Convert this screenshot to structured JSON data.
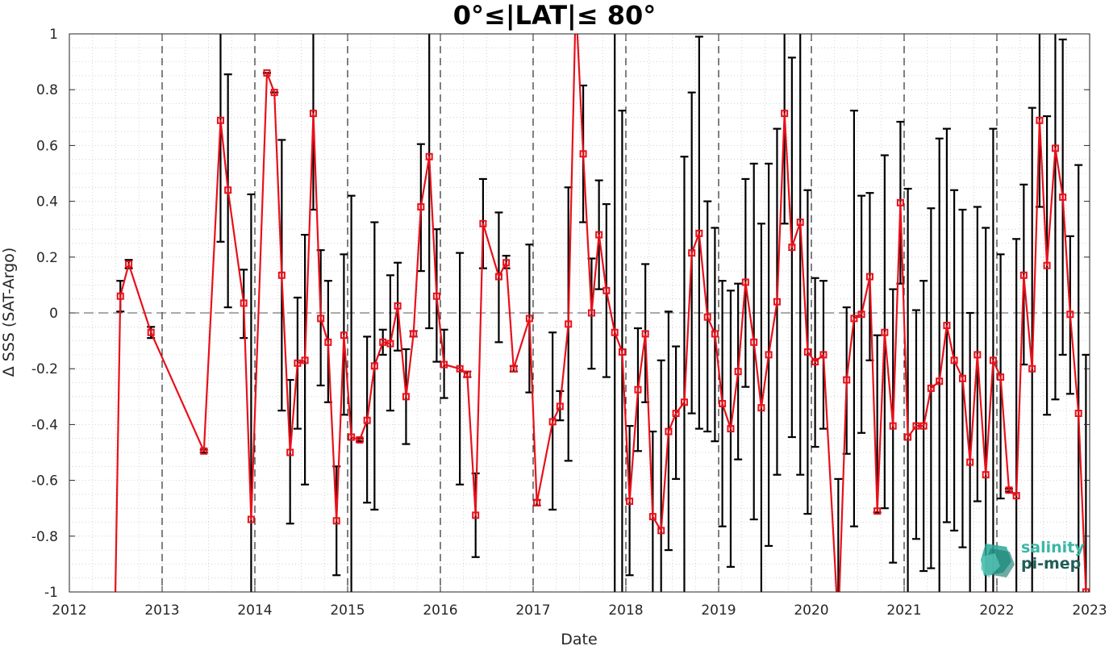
{
  "title": "0°≤|LAT|≤ 80°",
  "logo": {
    "line1": "salinity",
    "line2": "pi-mep",
    "icon": "salinity-pimep-logo-icon"
  },
  "colors": {
    "series": "#e8101a",
    "errorbar": "#000000",
    "grid": "#c8c8c8",
    "year_line": "#000000",
    "zero_line": "#555555"
  },
  "chart_data": {
    "type": "line",
    "title": "0°≤|LAT|≤ 80°",
    "xlabel": "Date",
    "ylabel": "Δ SSS (SAT-Argo)",
    "xlim": [
      2012,
      2023
    ],
    "ylim": [
      -1,
      1
    ],
    "xticks": [
      "2012",
      "2013",
      "2014",
      "2015",
      "2016",
      "2017",
      "2018",
      "2019",
      "2020",
      "2021",
      "2022",
      "2023"
    ],
    "yticks": [
      "1",
      "0.8",
      "0.6",
      "0.4",
      "0.2",
      "0",
      "-0.2",
      "-0.4",
      "-0.6",
      "-0.8",
      "-1"
    ],
    "grid": "on (dotted minor)",
    "reference_lines": {
      "zero_line": 0,
      "year_boundaries": true
    },
    "series": [
      {
        "points": [
          {
            "x": 2012.49,
            "y": -1.15
          },
          {
            "x": 2012.55,
            "y": 0.06,
            "lo": 0.005,
            "hi": 0.115
          },
          {
            "x": 2012.64,
            "y": 0.175,
            "lo": 0.16,
            "hi": 0.19
          },
          {
            "x": 2012.88,
            "y": -0.07,
            "lo": -0.09,
            "hi": -0.05
          },
          {
            "x": 2013.45,
            "y": -0.495,
            "lo": -0.5,
            "hi": -0.49
          },
          {
            "x": 2013.63,
            "y": 0.69,
            "lo": 0.255,
            "hi": 1.0
          },
          {
            "x": 2013.71,
            "y": 0.44,
            "lo": 0.02,
            "hi": 0.855
          },
          {
            "x": 2013.88,
            "y": 0.035,
            "lo": -0.09,
            "hi": 0.155
          },
          {
            "x": 2013.96,
            "y": -0.74,
            "lo": -1.0,
            "hi": 0.425
          },
          {
            "x": 2014.13,
            "y": 0.86,
            "lo": 0.86,
            "hi": 0.86
          },
          {
            "x": 2014.21,
            "y": 0.79,
            "lo": 0.79,
            "hi": 0.79
          },
          {
            "x": 2014.29,
            "y": 0.135,
            "lo": -0.35,
            "hi": 0.62
          },
          {
            "x": 2014.38,
            "y": -0.5,
            "lo": -0.755,
            "hi": -0.24
          },
          {
            "x": 2014.46,
            "y": -0.18,
            "lo": -0.415,
            "hi": 0.055
          },
          {
            "x": 2014.54,
            "y": -0.17,
            "lo": -0.615,
            "hi": 0.28
          },
          {
            "x": 2014.63,
            "y": 0.715,
            "lo": 0.37,
            "hi": 1.0
          },
          {
            "x": 2014.71,
            "y": -0.02,
            "lo": -0.26,
            "hi": 0.225
          },
          {
            "x": 2014.79,
            "y": -0.105,
            "lo": -0.32,
            "hi": 0.115
          },
          {
            "x": 2014.88,
            "y": -0.745,
            "lo": -0.94,
            "hi": -0.55
          },
          {
            "x": 2014.96,
            "y": -0.08,
            "lo": -0.365,
            "hi": 0.21
          },
          {
            "x": 2015.04,
            "y": -0.445,
            "lo": -1.0,
            "hi": 0.42
          },
          {
            "x": 2015.13,
            "y": -0.455,
            "lo": -0.46,
            "hi": -0.45
          },
          {
            "x": 2015.21,
            "y": -0.385,
            "lo": -0.68,
            "hi": -0.085
          },
          {
            "x": 2015.29,
            "y": -0.19,
            "lo": -0.705,
            "hi": 0.325
          },
          {
            "x": 2015.38,
            "y": -0.105,
            "lo": -0.15,
            "hi": -0.06
          },
          {
            "x": 2015.46,
            "y": -0.11,
            "lo": -0.35,
            "hi": 0.135
          },
          {
            "x": 2015.54,
            "y": 0.025,
            "lo": -0.135,
            "hi": 0.18
          },
          {
            "x": 2015.63,
            "y": -0.3,
            "lo": -0.47,
            "hi": -0.13
          },
          {
            "x": 2015.71,
            "y": -0.075,
            "lo": -0.085,
            "hi": -0.065
          },
          {
            "x": 2015.79,
            "y": 0.38,
            "lo": 0.15,
            "hi": 0.605
          },
          {
            "x": 2015.88,
            "y": 0.56,
            "lo": -0.055,
            "hi": 1.0
          },
          {
            "x": 2015.96,
            "y": 0.06,
            "lo": -0.175,
            "hi": 0.3
          },
          {
            "x": 2016.04,
            "y": -0.185,
            "lo": -0.305,
            "hi": -0.06
          },
          {
            "x": 2016.21,
            "y": -0.2,
            "lo": -0.615,
            "hi": 0.215
          },
          {
            "x": 2016.29,
            "y": -0.22,
            "lo": -0.23,
            "hi": -0.21
          },
          {
            "x": 2016.38,
            "y": -0.725,
            "lo": -0.875,
            "hi": -0.575
          },
          {
            "x": 2016.46,
            "y": 0.32,
            "lo": 0.16,
            "hi": 0.48
          },
          {
            "x": 2016.63,
            "y": 0.13,
            "lo": -0.105,
            "hi": 0.36
          },
          {
            "x": 2016.71,
            "y": 0.18,
            "lo": 0.16,
            "hi": 0.205
          },
          {
            "x": 2016.79,
            "y": -0.2,
            "lo": -0.21,
            "hi": -0.19
          },
          {
            "x": 2016.96,
            "y": -0.02,
            "lo": -0.285,
            "hi": 0.245
          },
          {
            "x": 2017.04,
            "y": -0.68,
            "lo": -0.69,
            "hi": -0.67
          },
          {
            "x": 2017.21,
            "y": -0.39,
            "lo": -0.705,
            "hi": -0.07
          },
          {
            "x": 2017.29,
            "y": -0.335,
            "lo": -0.385,
            "hi": -0.28
          },
          {
            "x": 2017.38,
            "y": -0.04,
            "lo": -0.53,
            "hi": 0.45
          },
          {
            "x": 2017.46,
            "y": 1.15
          },
          {
            "x": 2017.54,
            "y": 0.57,
            "lo": 0.325,
            "hi": 0.815
          },
          {
            "x": 2017.63,
            "y": 0.0,
            "lo": -0.2,
            "hi": 0.195
          },
          {
            "x": 2017.71,
            "y": 0.28,
            "lo": 0.085,
            "hi": 0.475
          },
          {
            "x": 2017.79,
            "y": 0.08,
            "lo": -0.23,
            "hi": 0.39
          },
          {
            "x": 2017.88,
            "y": -0.07,
            "lo": -1.0,
            "hi": 1.0
          },
          {
            "x": 2017.96,
            "y": -0.14,
            "lo": -1.0,
            "hi": 0.725
          },
          {
            "x": 2018.04,
            "y": -0.675,
            "lo": -0.94,
            "hi": -0.405
          },
          {
            "x": 2018.13,
            "y": -0.275,
            "lo": -0.495,
            "hi": -0.055
          },
          {
            "x": 2018.21,
            "y": -0.075,
            "lo": -0.32,
            "hi": 0.175
          },
          {
            "x": 2018.29,
            "y": -0.73,
            "lo": -1.0,
            "hi": -0.425
          },
          {
            "x": 2018.38,
            "y": -0.78,
            "lo": -1.0,
            "hi": -0.17
          },
          {
            "x": 2018.46,
            "y": -0.425,
            "lo": -0.85,
            "hi": 0.005
          },
          {
            "x": 2018.54,
            "y": -0.36,
            "lo": -0.595,
            "hi": -0.12
          },
          {
            "x": 2018.63,
            "y": -0.32,
            "lo": -1.0,
            "hi": 0.56
          },
          {
            "x": 2018.71,
            "y": 0.215,
            "lo": -0.36,
            "hi": 0.79
          },
          {
            "x": 2018.79,
            "y": 0.285,
            "lo": -0.415,
            "hi": 0.99
          },
          {
            "x": 2018.88,
            "y": -0.015,
            "lo": -0.425,
            "hi": 0.4
          },
          {
            "x": 2018.96,
            "y": -0.075,
            "lo": -0.46,
            "hi": 0.305
          },
          {
            "x": 2019.04,
            "y": -0.325,
            "lo": -0.765,
            "hi": 0.115
          },
          {
            "x": 2019.13,
            "y": -0.415,
            "lo": -0.91,
            "hi": 0.08
          },
          {
            "x": 2019.21,
            "y": -0.21,
            "lo": -0.525,
            "hi": 0.105
          },
          {
            "x": 2019.29,
            "y": 0.11,
            "lo": -0.265,
            "hi": 0.48
          },
          {
            "x": 2019.38,
            "y": -0.105,
            "lo": -0.74,
            "hi": 0.535
          },
          {
            "x": 2019.46,
            "y": -0.34,
            "lo": -1.0,
            "hi": 0.32
          },
          {
            "x": 2019.54,
            "y": -0.15,
            "lo": -0.835,
            "hi": 0.535
          },
          {
            "x": 2019.63,
            "y": 0.04,
            "lo": -0.58,
            "hi": 0.66
          },
          {
            "x": 2019.71,
            "y": 0.715,
            "lo": 0.32,
            "hi": 1.0
          },
          {
            "x": 2019.79,
            "y": 0.235,
            "lo": -0.445,
            "hi": 0.915
          },
          {
            "x": 2019.88,
            "y": 0.325,
            "lo": -0.58,
            "hi": 1.0
          },
          {
            "x": 2019.96,
            "y": -0.14,
            "lo": -0.72,
            "hi": 0.44
          },
          {
            "x": 2020.04,
            "y": -0.175,
            "lo": -0.48,
            "hi": 0.125
          },
          {
            "x": 2020.13,
            "y": -0.15,
            "lo": -0.415,
            "hi": 0.115
          },
          {
            "x": 2020.29,
            "y": -1.15,
            "lo": -1.0,
            "hi": -0.595
          },
          {
            "x": 2020.38,
            "y": -0.24,
            "lo": -0.505,
            "hi": 0.02
          },
          {
            "x": 2020.46,
            "y": -0.02,
            "lo": -0.765,
            "hi": 0.725
          },
          {
            "x": 2020.54,
            "y": -0.005,
            "lo": -0.43,
            "hi": 0.42
          },
          {
            "x": 2020.63,
            "y": 0.13,
            "lo": -0.17,
            "hi": 0.43
          },
          {
            "x": 2020.71,
            "y": -0.71,
            "lo": -0.715,
            "hi": -0.08
          },
          {
            "x": 2020.79,
            "y": -0.07,
            "lo": -0.7,
            "hi": 0.565
          },
          {
            "x": 2020.88,
            "y": -0.405,
            "lo": -0.895,
            "hi": 0.085
          },
          {
            "x": 2020.96,
            "y": 0.395,
            "lo": 0.105,
            "hi": 0.685
          },
          {
            "x": 2021.04,
            "y": -0.445,
            "lo": -1.0,
            "hi": 0.445
          },
          {
            "x": 2021.13,
            "y": -0.405,
            "lo": -0.81,
            "hi": 0.01
          },
          {
            "x": 2021.21,
            "y": -0.405,
            "lo": -0.925,
            "hi": 0.115
          },
          {
            "x": 2021.29,
            "y": -0.27,
            "lo": -0.915,
            "hi": 0.375
          },
          {
            "x": 2021.38,
            "y": -0.245,
            "lo": -1.0,
            "hi": 0.625
          },
          {
            "x": 2021.46,
            "y": -0.045,
            "lo": -0.75,
            "hi": 0.66
          },
          {
            "x": 2021.54,
            "y": -0.17,
            "lo": -0.78,
            "hi": 0.44
          },
          {
            "x": 2021.63,
            "y": -0.235,
            "lo": -0.84,
            "hi": 0.37
          },
          {
            "x": 2021.71,
            "y": -0.535,
            "lo": -1.0,
            "hi": 0.0
          },
          {
            "x": 2021.79,
            "y": -0.15,
            "lo": -0.675,
            "hi": 0.38
          },
          {
            "x": 2021.88,
            "y": -0.58,
            "lo": -1.0,
            "hi": 0.305
          },
          {
            "x": 2021.96,
            "y": -0.17,
            "lo": -1.0,
            "hi": 0.66
          },
          {
            "x": 2022.04,
            "y": -0.23,
            "lo": -0.665,
            "hi": 0.21
          },
          {
            "x": 2022.13,
            "y": -0.635,
            "lo": -0.64,
            "hi": -0.63
          },
          {
            "x": 2022.21,
            "y": -0.655,
            "lo": -1.0,
            "hi": 0.265
          },
          {
            "x": 2022.29,
            "y": 0.135,
            "lo": -0.185,
            "hi": 0.46
          },
          {
            "x": 2022.38,
            "y": -0.2,
            "lo": -1.0,
            "hi": 0.735
          },
          {
            "x": 2022.46,
            "y": 0.69,
            "lo": 0.38,
            "hi": 1.0
          },
          {
            "x": 2022.54,
            "y": 0.17,
            "lo": -0.365,
            "hi": 0.705
          },
          {
            "x": 2022.63,
            "y": 0.59,
            "lo": -0.31,
            "hi": 1.0
          },
          {
            "x": 2022.71,
            "y": 0.415,
            "lo": -0.15,
            "hi": 0.98
          },
          {
            "x": 2022.79,
            "y": -0.005,
            "lo": -0.29,
            "hi": 0.275
          },
          {
            "x": 2022.88,
            "y": -0.36,
            "lo": -1.0,
            "hi": 0.53
          },
          {
            "x": 2022.96,
            "y": -1.0,
            "lo": -1.0,
            "hi": -0.15
          }
        ]
      }
    ]
  }
}
